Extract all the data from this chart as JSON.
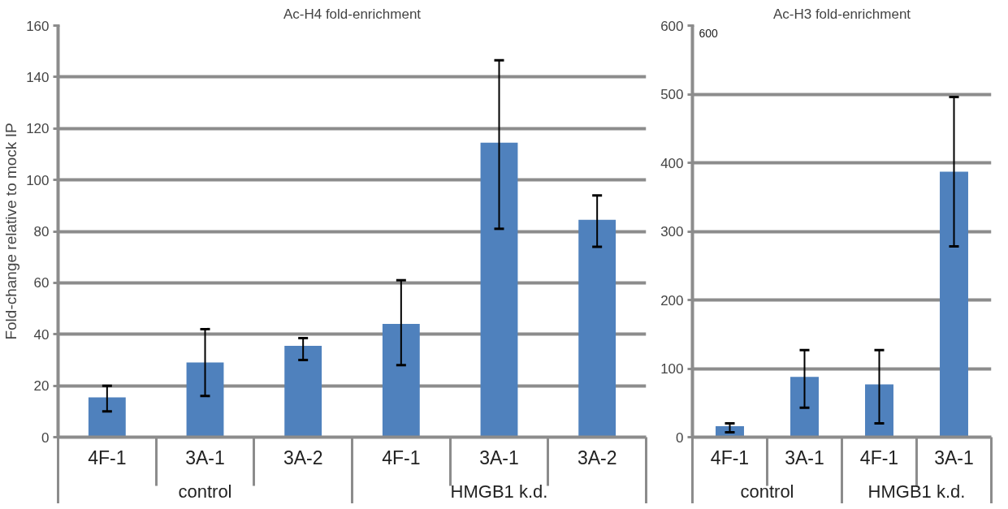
{
  "chart_data": [
    {
      "type": "bar",
      "title": "Ac-H4 fold-enrichment",
      "ylabel": "Fold-change relative to mock IP",
      "categories": [
        "4F-1",
        "3A-1",
        "3A-2",
        "4F-1",
        "3A-1",
        "3A-2"
      ],
      "annotations": [
        "control",
        "HMGB1 k.d."
      ],
      "series": [
        {
          "color": "#4f81bd",
          "values": [
            15.5,
            29,
            35.5,
            44,
            114.5,
            84.5
          ],
          "errors": [
            [
              10,
              20
            ],
            [
              16,
              42
            ],
            [
              30,
              38.5
            ],
            [
              28,
              61
            ],
            [
              81,
              146.5
            ],
            [
              74,
              94
            ]
          ]
        }
      ],
      "ylim": [
        0,
        160
      ],
      "yticks": [
        0,
        20,
        40,
        60,
        80,
        100,
        120,
        140,
        160
      ],
      "grid": "y"
    },
    {
      "type": "bar",
      "title": "Ac-H3 fold-enrichment",
      "annotations": [
        "600",
        "control",
        "HMGB1 k.d."
      ],
      "categories": [
        "4F-1",
        "3A-1",
        "4F-1",
        "3A-1"
      ],
      "series": [
        {
          "color": "#4f81bd",
          "values": [
            16,
            88,
            77,
            387
          ],
          "errors": [
            [
              7,
              20
            ],
            [
              43,
              127
            ],
            [
              20,
              127
            ],
            [
              278,
              496
            ]
          ]
        }
      ],
      "ylim": [
        0,
        600
      ],
      "yticks": [
        0,
        100,
        200,
        300,
        400,
        500,
        600
      ],
      "grid": "y"
    }
  ]
}
